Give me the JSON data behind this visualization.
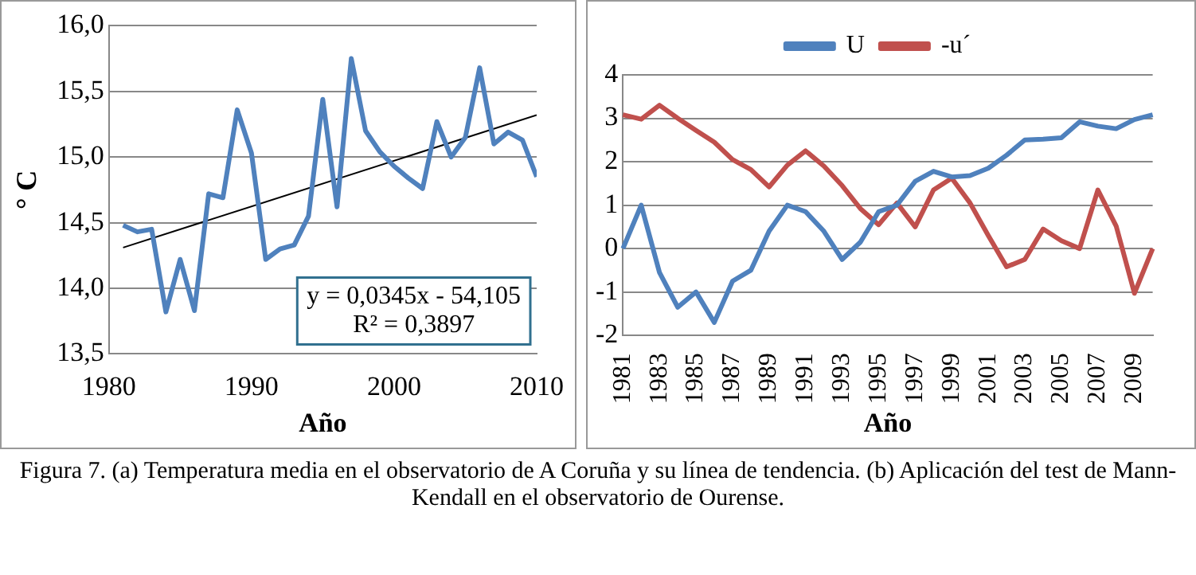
{
  "chart_data": [
    {
      "type": "line",
      "xlabel": "Año",
      "ylabel": "° C",
      "x": [
        1981,
        1982,
        1983,
        1984,
        1985,
        1986,
        1987,
        1988,
        1989,
        1990,
        1991,
        1992,
        1993,
        1994,
        1995,
        1996,
        1997,
        1998,
        1999,
        2000,
        2001,
        2002,
        2003,
        2004,
        2005,
        2006,
        2007,
        2008,
        2009,
        2010
      ],
      "series": [
        {
          "color": "#4f81bd",
          "values": [
            14.48,
            14.43,
            14.45,
            13.82,
            14.22,
            13.83,
            14.72,
            14.69,
            15.36,
            15.03,
            14.22,
            14.3,
            14.33,
            14.55,
            15.44,
            14.62,
            15.75,
            15.2,
            15.04,
            14.93,
            14.84,
            14.76,
            15.27,
            15.0,
            15.15,
            15.68,
            15.1,
            15.19,
            15.13,
            14.85
          ]
        },
        {
          "type": "line",
          "color": "#000000",
          "x": [
            1981,
            2010
          ],
          "values": [
            14.31,
            15.32
          ]
        }
      ],
      "xlim": [
        1980,
        2010
      ],
      "xticks": [
        1980,
        1990,
        2000,
        2010
      ],
      "ylim": [
        13.5,
        16
      ],
      "yticks": [
        {
          "value": 13.5,
          "label": "13,5"
        },
        {
          "value": 14,
          "label": "14,0"
        },
        {
          "value": 14.5,
          "label": "14,5"
        },
        {
          "value": 15,
          "label": "15,0"
        },
        {
          "value": 15.5,
          "label": "15,5"
        },
        {
          "value": 16,
          "label": "16,0"
        }
      ],
      "grid": "y",
      "legend": false,
      "marker": "none",
      "annotations": [
        "y = 0,0345x - 54,105",
        "R² = 0,3897",
        "Figura 7. (a) Temperatura media en el observatorio de A Coruña y su línea de tendencia. (b) Aplicación del test de Mann-Kendall en el observatorio de Ourense."
      ]
    },
    {
      "type": "line",
      "xlabel": "Año",
      "categories": [
        "1981",
        null,
        "1983",
        null,
        "1985",
        null,
        "1987",
        null,
        "1989",
        null,
        "1991",
        null,
        "1993",
        null,
        "1995",
        null,
        "1997",
        null,
        "1999",
        null,
        "2001",
        null,
        "2003",
        null,
        "2005",
        null,
        "2007",
        null,
        "2009",
        null
      ],
      "series": [
        {
          "name": "U",
          "color": "#4f81bd",
          "values": [
            0.0,
            1.0,
            -0.55,
            -1.35,
            -1.0,
            -1.7,
            -0.75,
            -0.5,
            0.4,
            1.0,
            0.85,
            0.4,
            -0.25,
            0.15,
            0.85,
            1.0,
            1.55,
            1.78,
            1.65,
            1.68,
            1.85,
            2.15,
            2.5,
            2.52,
            2.55,
            2.92,
            2.82,
            2.76,
            2.97,
            3.08
          ]
        },
        {
          "name": "-u´",
          "color": "#c0504d",
          "values": [
            3.08,
            2.98,
            3.3,
            3.0,
            2.72,
            2.45,
            2.05,
            1.82,
            1.42,
            1.92,
            2.25,
            1.9,
            1.45,
            0.92,
            0.55,
            1.05,
            0.5,
            1.35,
            1.62,
            1.05,
            0.3,
            -0.42,
            -0.25,
            0.45,
            0.18,
            0.0,
            1.35,
            0.52,
            -1.03,
            0.0
          ]
        }
      ],
      "ylim": [
        -2,
        4
      ],
      "yticks": [
        -2,
        -1,
        0,
        1,
        2,
        3,
        4
      ],
      "grid": "y",
      "legend": "top",
      "marker": "none"
    }
  ]
}
